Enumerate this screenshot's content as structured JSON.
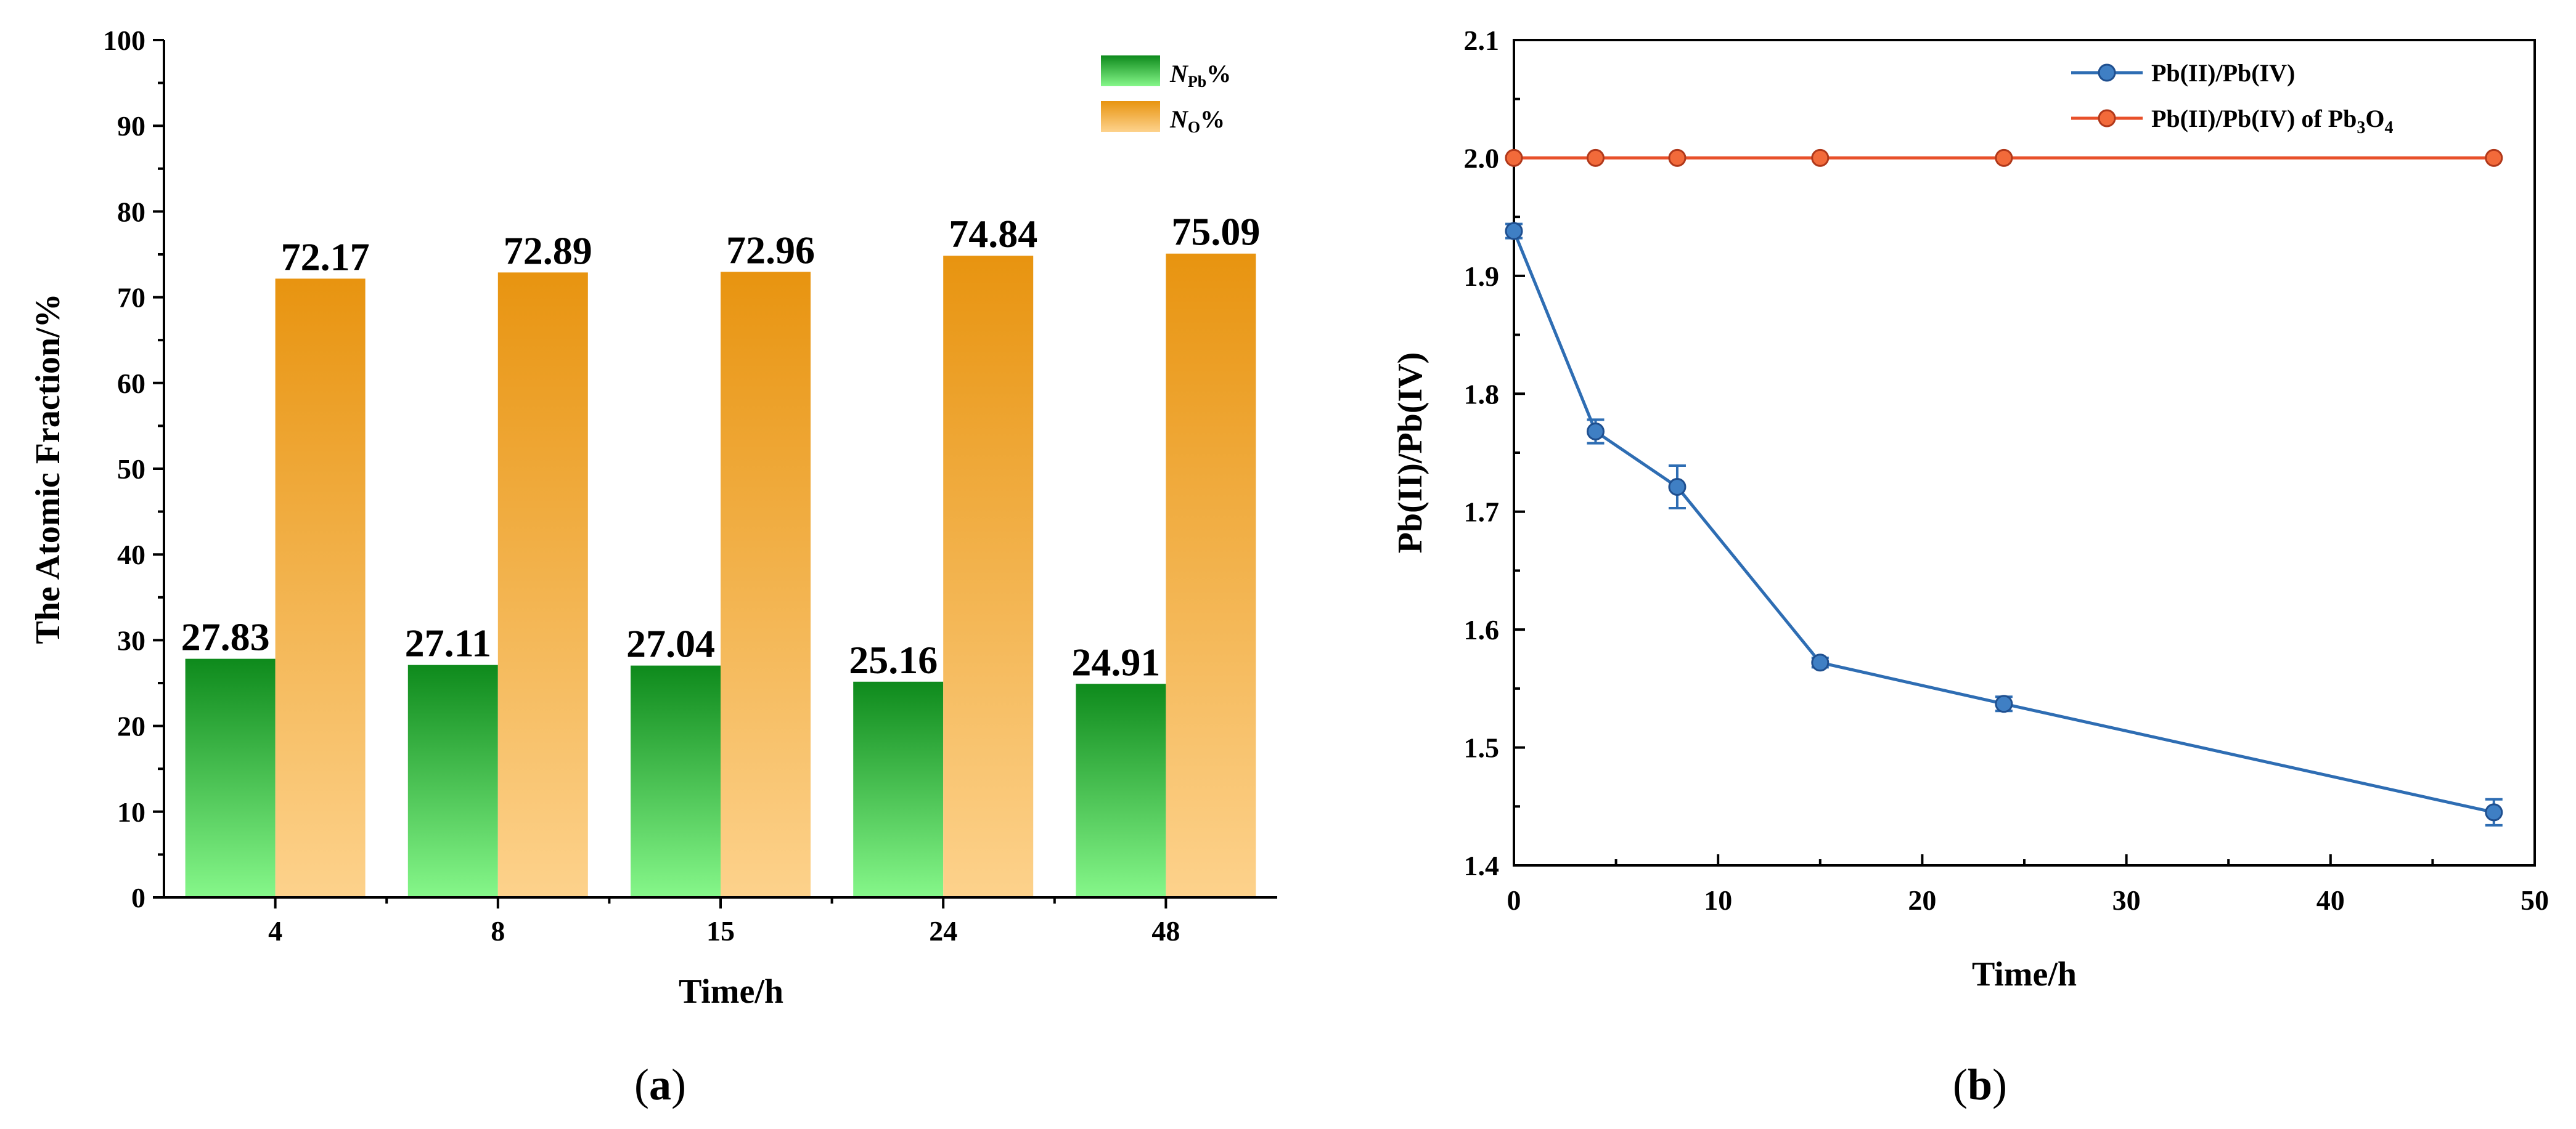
{
  "chart_data": [
    {
      "type": "bar",
      "panel_label_open": "(",
      "panel_label_letter": "a",
      "panel_label_close": ")",
      "xlabel": "Time/h",
      "ylabel": "The Atomic Fraction/%",
      "ylim": [
        0,
        100
      ],
      "yticks": [
        0,
        10,
        20,
        30,
        40,
        50,
        60,
        70,
        80,
        90,
        100
      ],
      "categories": [
        "4",
        "8",
        "15",
        "24",
        "48"
      ],
      "series": [
        {
          "name": "N_Pb%",
          "legend_main": "N",
          "legend_sub": "Pb",
          "legend_suffix": "%",
          "values": [
            27.83,
            27.11,
            27.04,
            25.16,
            24.91
          ],
          "labels": [
            "27.83",
            "27.11",
            "27.04",
            "25.16",
            "24.91"
          ],
          "color_top": "#0e8a1c",
          "color_bottom": "#86f78a",
          "label_color": "#1a9a1a"
        },
        {
          "name": "N_O%",
          "legend_main": "N",
          "legend_sub": "O",
          "legend_suffix": "%",
          "values": [
            72.17,
            72.89,
            72.96,
            74.84,
            75.09
          ],
          "labels": [
            "72.17",
            "72.89",
            "72.96",
            "74.84",
            "75.09"
          ],
          "color_top": "#e89410",
          "color_bottom": "#fdd28c",
          "label_color": "#e89a12"
        }
      ]
    },
    {
      "type": "line",
      "panel_label_open": "(",
      "panel_label_letter": "b",
      "panel_label_close": ")",
      "xlabel": "Time/h",
      "ylabel": "Pb(II)/Pb(IV)",
      "xlim": [
        0,
        50
      ],
      "ylim": [
        1.4,
        2.1
      ],
      "xticks": [
        0,
        10,
        20,
        30,
        40,
        50
      ],
      "yticks": [
        1.4,
        1.5,
        1.6,
        1.7,
        1.8,
        1.9,
        2.0,
        2.1
      ],
      "ytick_labels": [
        "1.4",
        "1.5",
        "1.6",
        "1.7",
        "1.8",
        "1.9",
        "2.0",
        "2.1"
      ],
      "series": [
        {
          "name": "Pb(II)/Pb(IV)",
          "legend_label": "Pb(II)/Pb(IV)",
          "x": [
            0,
            4,
            8,
            15,
            24,
            48
          ],
          "y": [
            1.938,
            1.768,
            1.721,
            1.572,
            1.537,
            1.445
          ],
          "err": [
            0.006,
            0.01,
            0.018,
            0.004,
            0.006,
            0.011
          ],
          "color": "#2e6db3"
        },
        {
          "name": "Pb(II)/Pb(IV) of Pb3O4",
          "legend_label": "Pb(II)/Pb(IV) of Pb",
          "legend_sub1": "3",
          "legend_mid": "O",
          "legend_sub2": "4",
          "x": [
            0,
            4,
            8,
            15,
            24,
            48
          ],
          "y": [
            2.0,
            2.0,
            2.0,
            2.0,
            2.0,
            2.0
          ],
          "color": "#e8502a"
        }
      ]
    }
  ]
}
